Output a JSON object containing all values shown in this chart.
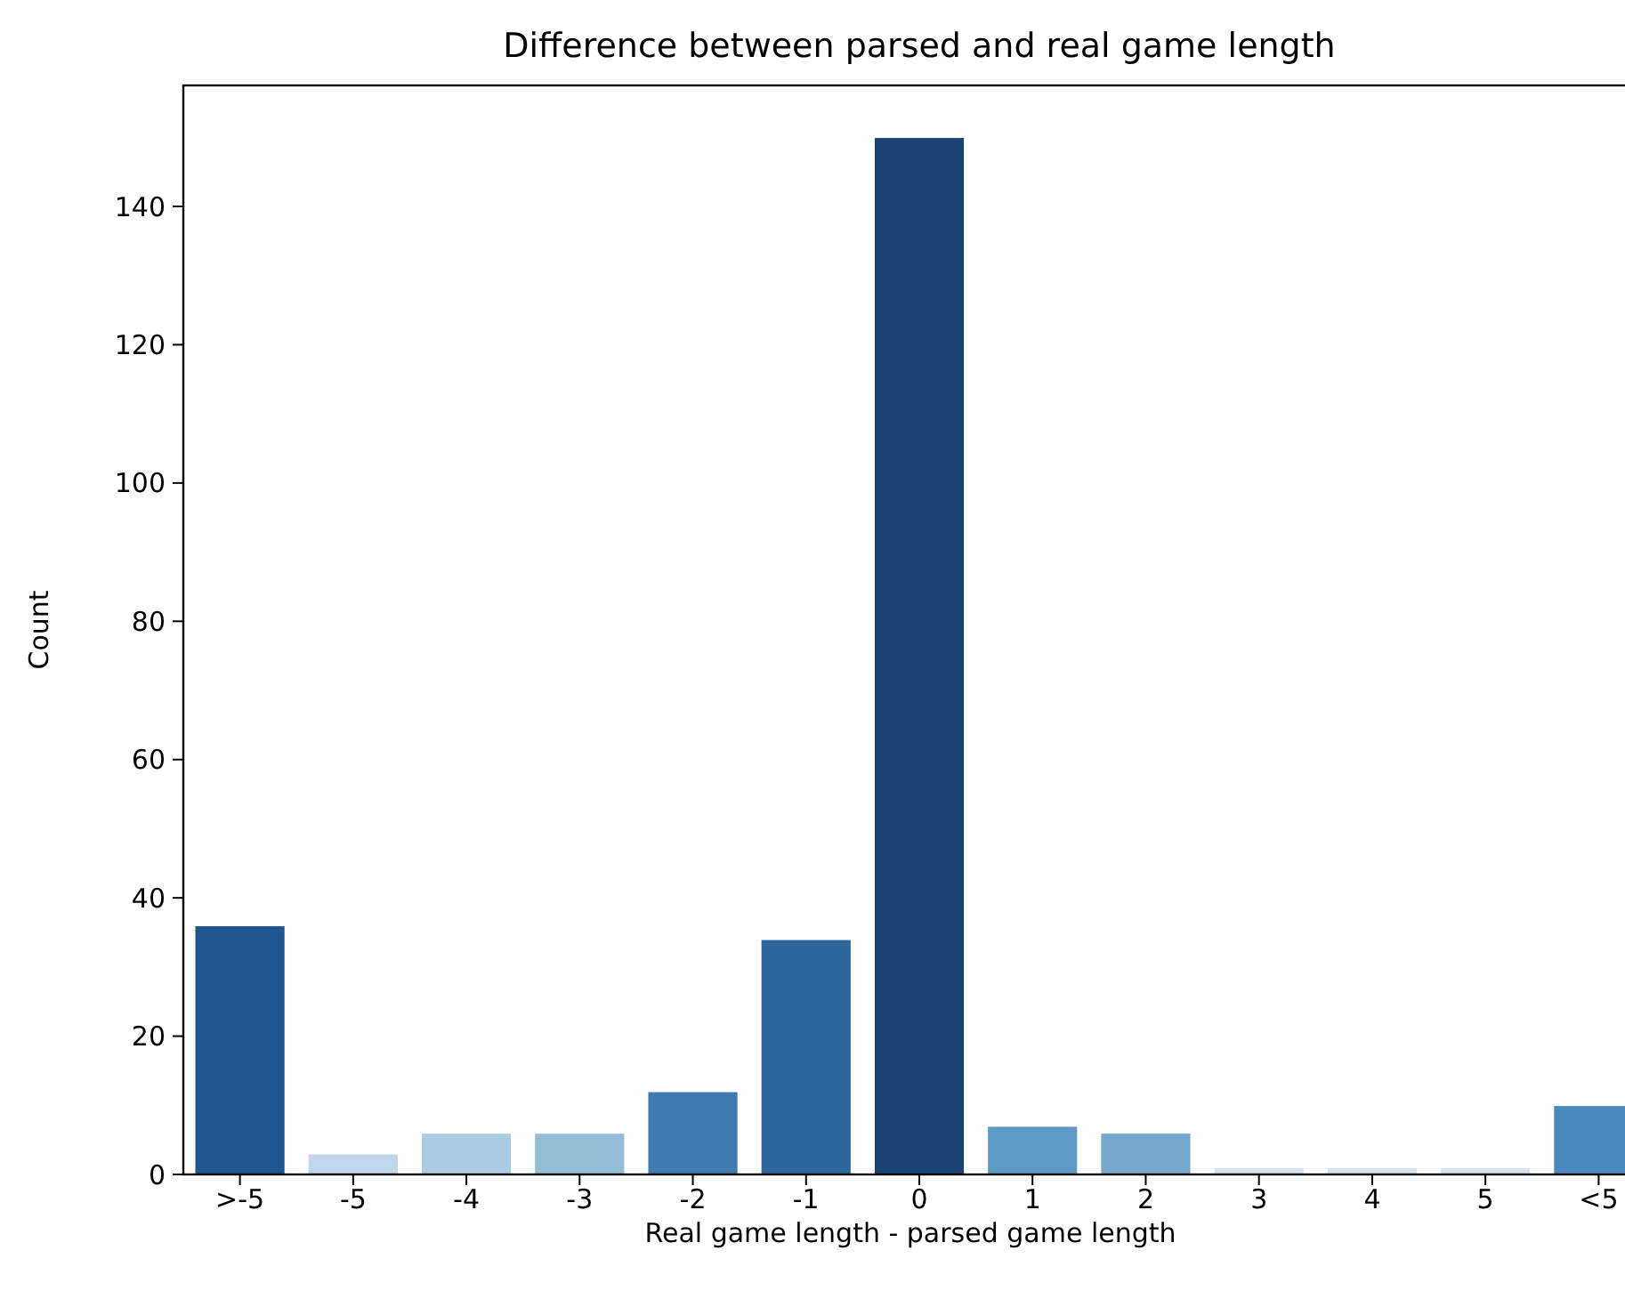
{
  "chart_data": {
    "type": "bar",
    "title": "Difference between parsed and real game length",
    "xlabel": "Real game length - parsed game length",
    "ylabel": "Count",
    "categories": [
      ">-5",
      "-5",
      "-4",
      "-3",
      "-2",
      "-1",
      "0",
      "1",
      "2",
      "3",
      "4",
      "5",
      "<5"
    ],
    "values": [
      36,
      3,
      6,
      6,
      12,
      34,
      150,
      7,
      6,
      1,
      1,
      1,
      10
    ],
    "colors": [
      "#1f5591",
      "#c0d6ea",
      "#abcbe2",
      "#93bed8",
      "#3d7bb0",
      "#2d669c",
      "#1a4373",
      "#5d9bc6",
      "#76aacd",
      "#d4e3f2",
      "#d4e3f2",
      "#d4e3f2",
      "#4a89bd"
    ],
    "ylim": [
      0,
      157.5
    ],
    "yticks": [
      0,
      20,
      40,
      60,
      80,
      100,
      120,
      140
    ],
    "grid": false
  }
}
